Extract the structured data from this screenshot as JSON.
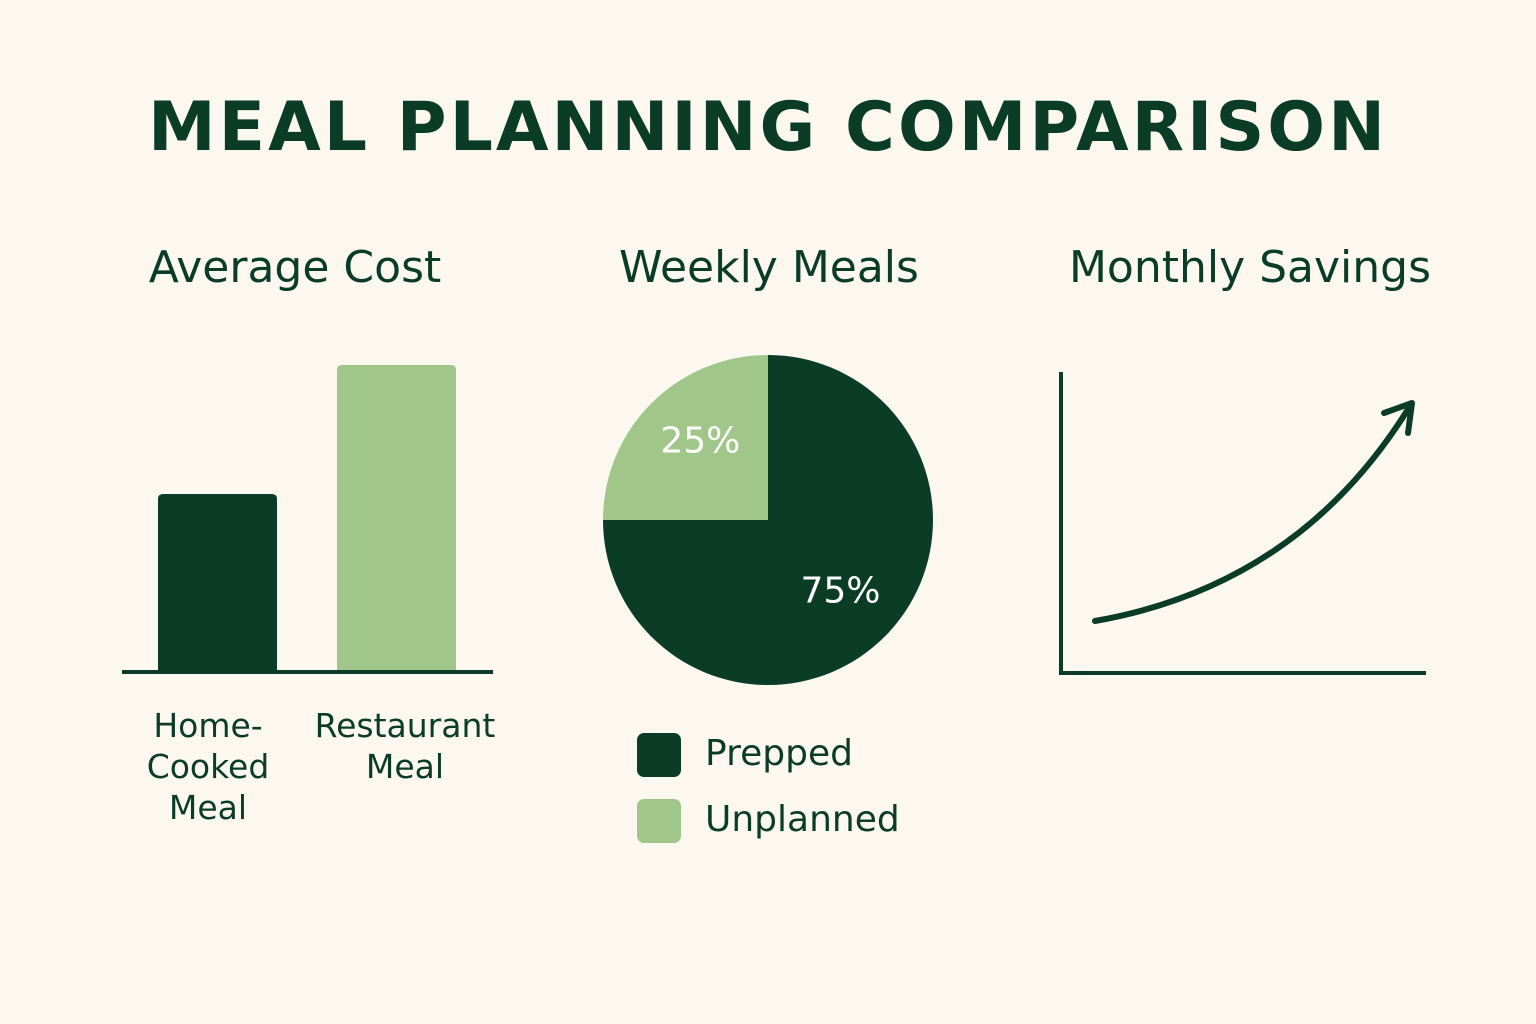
{
  "title": "MEAL PLANNING COMPARISON",
  "colors": {
    "dark_green": "#0b3d26",
    "light_green": "#a0c68a",
    "background": "#fcf8f0"
  },
  "chart_data": [
    {
      "type": "bar",
      "title": "Average Cost",
      "categories": [
        "Home-\nCooked\nMeal",
        "Restaurant\nMeal"
      ],
      "values": [
        58,
        100
      ],
      "colors": [
        "#0b3d26",
        "#a0c68a"
      ],
      "grid": false
    },
    {
      "type": "pie",
      "title": "Weekly Meals",
      "slices": [
        {
          "name": "Prepped",
          "value": 75,
          "label": "75%",
          "color": "#0b3d26"
        },
        {
          "name": "Unplanned",
          "value": 25,
          "label": "25%",
          "color": "#a0c68a"
        }
      ],
      "legend": "bottom"
    },
    {
      "type": "line",
      "title": "Monthly Savings",
      "trend": "increasing",
      "arrow": true,
      "grid": false
    }
  ]
}
